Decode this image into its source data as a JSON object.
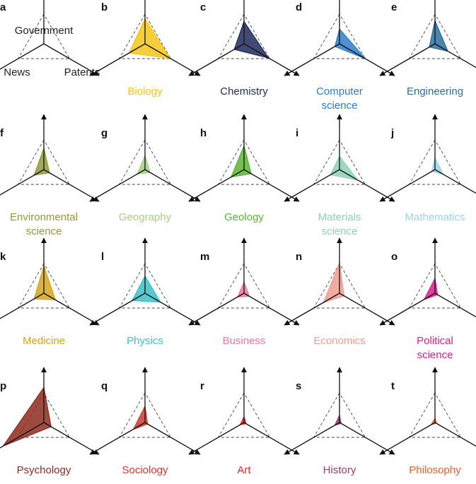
{
  "chart_data": {
    "type": "radar",
    "axes": [
      "Government",
      "News",
      "Patents"
    ],
    "panels": [
      {
        "letter": "a",
        "label": "",
        "color": "",
        "values": []
      },
      {
        "letter": "b",
        "label": "Biology",
        "color": "#F5C518",
        "values": [
          0.85,
          0.62,
          0.98
        ]
      },
      {
        "letter": "c",
        "label": "Chemistry",
        "color": "#1F2A5C",
        "values": [
          0.75,
          0.38,
          0.95
        ]
      },
      {
        "letter": "d",
        "label": "Computer science",
        "color": "#2F7CC8",
        "values": [
          0.5,
          0.18,
          1.02
        ]
      },
      {
        "letter": "e",
        "label": "Engineering",
        "color": "#2D6E9E",
        "values": [
          0.78,
          0.22,
          0.5
        ]
      },
      {
        "letter": "f",
        "label": "Environmental science",
        "color": "#8F9B3A",
        "values": [
          0.72,
          0.38,
          0.22
        ]
      },
      {
        "letter": "g",
        "label": "Geography",
        "color": "#A8CE86",
        "values": [
          0.48,
          0.3,
          0.2
        ]
      },
      {
        "letter": "h",
        "label": "Geology",
        "color": "#5AB434",
        "values": [
          0.8,
          0.5,
          0.28
        ]
      },
      {
        "letter": "i",
        "label": "Materials science",
        "color": "#8FD0B5",
        "values": [
          0.45,
          0.35,
          0.7
        ]
      },
      {
        "letter": "j",
        "label": "Mathematics",
        "color": "#9CD3E6",
        "values": [
          0.4,
          0.12,
          0.32
        ]
      },
      {
        "letter": "k",
        "label": "Medicine",
        "color": "#D4A51E",
        "values": [
          0.92,
          0.38,
          0.45
        ]
      },
      {
        "letter": "l",
        "label": "Physics",
        "color": "#3CBFC6",
        "values": [
          0.58,
          0.5,
          0.6
        ]
      },
      {
        "letter": "m",
        "label": "Business",
        "color": "#E9799A",
        "values": [
          0.38,
          0.25,
          0.2
        ]
      },
      {
        "letter": "n",
        "label": "Economics",
        "color": "#EE9E92",
        "values": [
          1.03,
          0.62,
          0.18
        ]
      },
      {
        "letter": "o",
        "label": "Political science",
        "color": "#DD1F8E",
        "values": [
          0.5,
          0.42,
          0.1
        ]
      },
      {
        "letter": "p",
        "label": "Psychology",
        "color": "#8E2A1E",
        "values": [
          1.18,
          1.58,
          0.28
        ]
      },
      {
        "letter": "q",
        "label": "Sociology",
        "color": "#CC3A2E",
        "values": [
          0.55,
          0.45,
          0.1
        ]
      },
      {
        "letter": "r",
        "label": "Art",
        "color": "#E0292D",
        "values": [
          0.2,
          0.15,
          0.08
        ]
      },
      {
        "letter": "s",
        "label": "History",
        "color": "#9B3C72",
        "values": [
          0.25,
          0.18,
          0.06
        ]
      },
      {
        "letter": "t",
        "label": "Philosophy",
        "color": "#E8622A",
        "values": [
          0.15,
          0.15,
          0.05
        ]
      }
    ],
    "reference_triangle": "dashed",
    "grid": false,
    "legend": "none"
  }
}
